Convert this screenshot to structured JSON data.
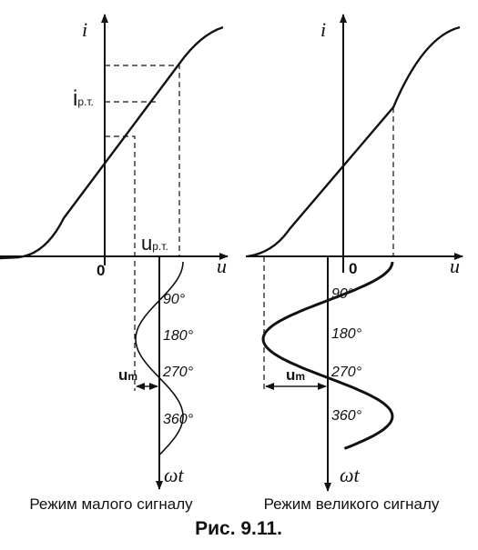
{
  "left_panel": {
    "i_axis": "i",
    "u_axis": "u",
    "origin": "0",
    "i_operating": {
      "main": "i",
      "sub": "р.т."
    },
    "u_operating": {
      "main": "u",
      "sub": "р.т."
    },
    "angles": [
      "90°",
      "180°",
      "270°",
      "360°"
    ],
    "amplitude": {
      "main": "u",
      "sub": "m"
    },
    "time_axis": "ωt",
    "caption": "Режим малого сигналу"
  },
  "right_panel": {
    "i_axis": "i",
    "u_axis": "u",
    "origin": "0",
    "angles": [
      "90°",
      "180°",
      "270°",
      "360°"
    ],
    "amplitude": {
      "main": "u",
      "sub": "m"
    },
    "time_axis": "ωt",
    "caption": "Режим великого сигналу"
  },
  "figure_caption": "Рис. 9.11."
}
